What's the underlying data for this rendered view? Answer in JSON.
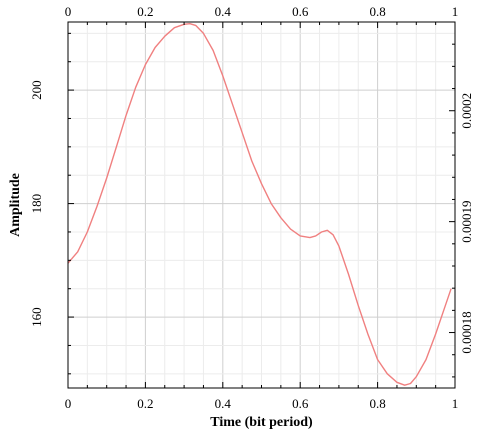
{
  "chart_data": {
    "type": "line",
    "xlabel": "Time (bit period)",
    "ylabel": "Amplitude",
    "xlim": [
      0,
      1
    ],
    "ylim": [
      147.5,
      212
    ],
    "y2lim": [
      0.000175,
      0.000208
    ],
    "x_ticks": [
      "0",
      "0.2",
      "0.4",
      "0.6",
      "0.8",
      "1"
    ],
    "x_tick_values": [
      0,
      0.2,
      0.4,
      0.6,
      0.8,
      1
    ],
    "x2_ticks": [
      "0",
      "0.2",
      "0.4",
      "0.6",
      "0.8",
      "1"
    ],
    "y_ticks": [
      "160",
      "180",
      "200"
    ],
    "y_tick_values": [
      160,
      180,
      200
    ],
    "y2_ticks": [
      "0.00018",
      "0.00019",
      "0.0002"
    ],
    "y2_tick_values": [
      0.00018,
      0.00019,
      0.0002
    ],
    "grid": true,
    "legend": "none",
    "series": [
      {
        "color": "#f08080",
        "x": [
          0,
          0.025,
          0.05,
          0.075,
          0.1,
          0.125,
          0.15,
          0.175,
          0.2,
          0.225,
          0.25,
          0.275,
          0.3,
          0.315,
          0.33,
          0.35,
          0.375,
          0.4,
          0.425,
          0.45,
          0.475,
          0.5,
          0.525,
          0.55,
          0.575,
          0.6,
          0.625,
          0.64,
          0.655,
          0.67,
          0.685,
          0.7,
          0.725,
          0.75,
          0.775,
          0.8,
          0.825,
          0.85,
          0.87,
          0.885,
          0.9,
          0.925,
          0.95,
          0.975,
          0.99
        ],
        "y": [
          169.5,
          171.5,
          175,
          179.5,
          184.5,
          190,
          195.5,
          200.5,
          204.5,
          207.5,
          209.5,
          211,
          211.6,
          211.7,
          211.4,
          210,
          207,
          202.5,
          197.5,
          192.5,
          187.5,
          183.5,
          180,
          177.5,
          175.5,
          174.3,
          174,
          174.3,
          175,
          175.3,
          174.5,
          172.5,
          167.5,
          162,
          157,
          152.5,
          150,
          148.5,
          148,
          148.3,
          149.5,
          152.5,
          157,
          162,
          165
        ]
      }
    ]
  }
}
